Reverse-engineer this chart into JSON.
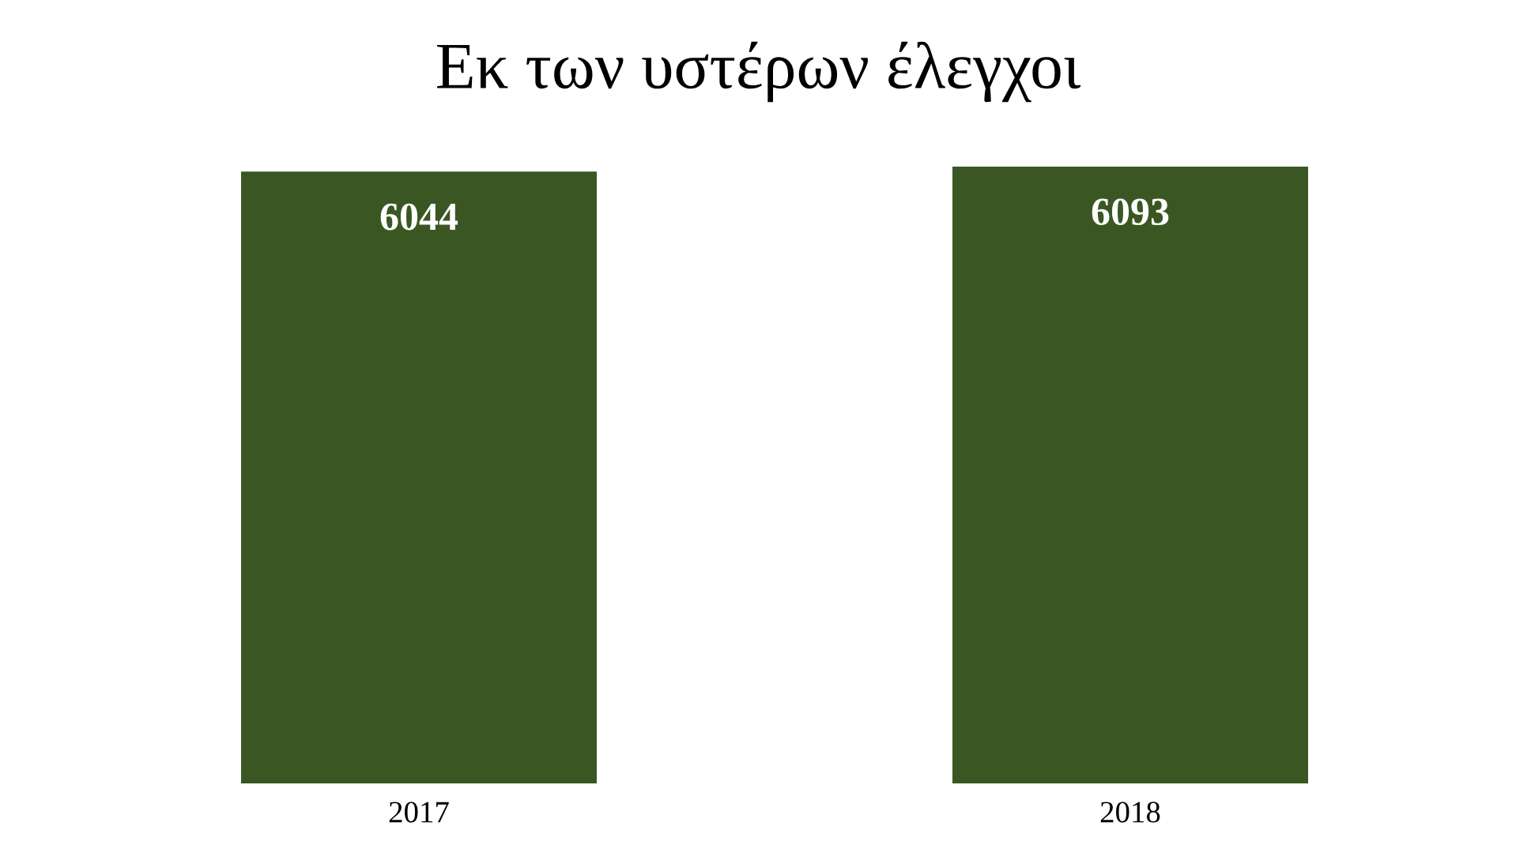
{
  "chart_data": {
    "type": "bar",
    "title": "Εκ των υστέρων έλεγχοι",
    "categories": [
      "2017",
      "2018"
    ],
    "values": [
      6044,
      6093
    ],
    "color": "#3a5723",
    "data_labels": true,
    "grid": false,
    "legend": false
  }
}
